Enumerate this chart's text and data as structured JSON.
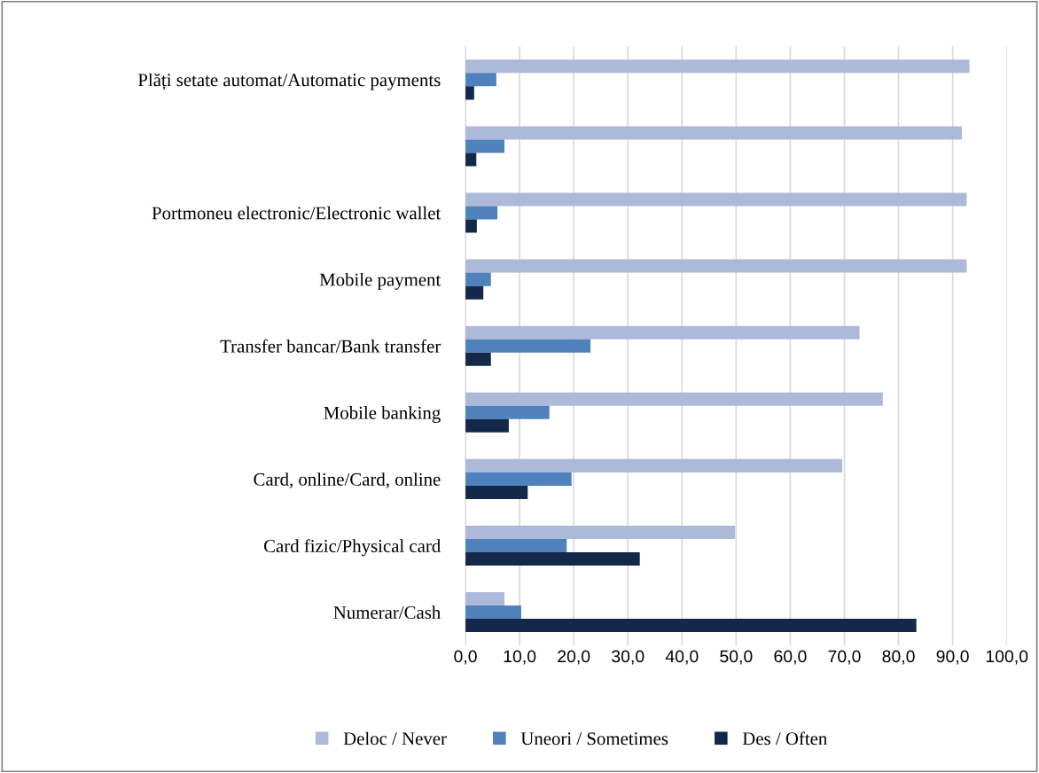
{
  "chart_data": {
    "type": "bar",
    "orientation": "horizontal",
    "categories": [
      "Plăți setate automat/Automatic payments",
      null,
      "Portmoneu electronic/Electronic wallet",
      "Mobile payment",
      "Transfer bancar/Bank transfer",
      "Mobile banking",
      "Card, online/Card, online",
      "Card fizic/Physical card",
      "Numerar/Cash"
    ],
    "series": [
      {
        "name": "Deloc / Never",
        "color": "#adb9d8",
        "values": [
          93.1,
          91.7,
          92.6,
          92.6,
          72.8,
          77.1,
          69.6,
          49.8,
          7.2
        ]
      },
      {
        "name": "Uneori / Sometimes",
        "color": "#4f81bd",
        "values": [
          5.7,
          7.2,
          5.9,
          4.7,
          23.1,
          15.5,
          19.6,
          18.7,
          10.3
        ]
      },
      {
        "name": "Des / Often",
        "color": "#142849",
        "values": [
          1.6,
          2.0,
          2.1,
          3.3,
          4.7,
          8.0,
          11.5,
          32.2,
          83.3
        ]
      }
    ],
    "xlim": [
      0,
      100
    ],
    "xticks": [
      {
        "value": 0,
        "label": "0,0"
      },
      {
        "value": 10,
        "label": "10,0"
      },
      {
        "value": 20,
        "label": "20,0"
      },
      {
        "value": 30,
        "label": "30,0"
      },
      {
        "value": 40,
        "label": "40,0"
      },
      {
        "value": 50,
        "label": "50,0"
      },
      {
        "value": 60,
        "label": "60,0"
      },
      {
        "value": 70,
        "label": "70,0"
      },
      {
        "value": 80,
        "label": "80,0"
      },
      {
        "value": 90,
        "label": "90,0"
      },
      {
        "value": 100,
        "label": "100,0"
      }
    ],
    "grid": "x",
    "legend": "bottom"
  }
}
